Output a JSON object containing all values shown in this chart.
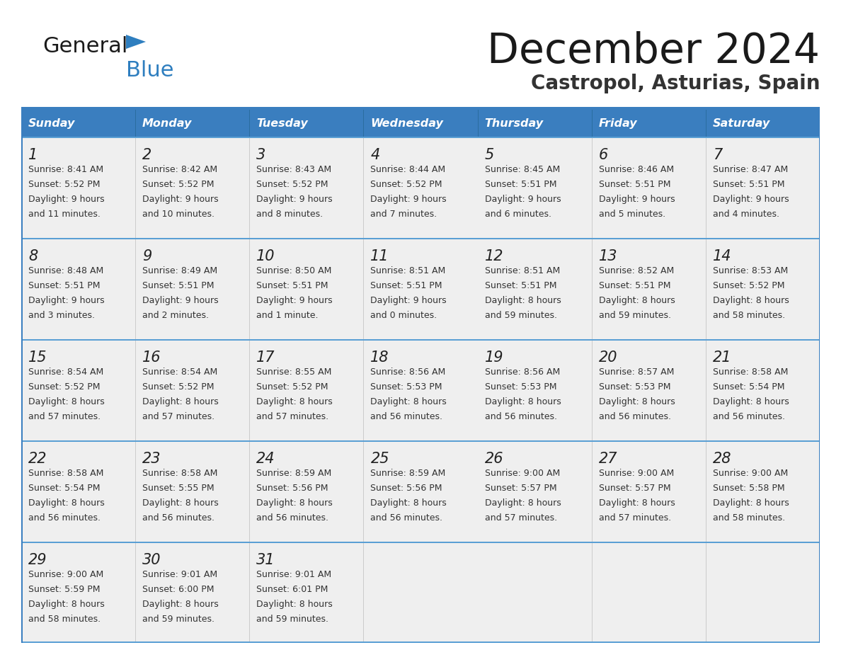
{
  "title": "December 2024",
  "subtitle": "Castropol, Asturias, Spain",
  "header_color": "#3a7ebf",
  "header_text_color": "#ffffff",
  "cell_bg_color": "#efefef",
  "border_color": "#3a7ebf",
  "row_separator_color": "#5a9fd4",
  "text_color": "#333333",
  "days_of_week": [
    "Sunday",
    "Monday",
    "Tuesday",
    "Wednesday",
    "Thursday",
    "Friday",
    "Saturday"
  ],
  "logo_general_color": "#1a1a1a",
  "logo_blue_color": "#2e7ebf",
  "logo_triangle_color": "#2e7ebf",
  "title_color": "#1a1a1a",
  "subtitle_color": "#333333",
  "weeks": [
    [
      {
        "day": 1,
        "sunrise": "8:41 AM",
        "sunset": "5:52 PM",
        "daylight_h": "9 hours",
        "daylight_m": "11 minutes"
      },
      {
        "day": 2,
        "sunrise": "8:42 AM",
        "sunset": "5:52 PM",
        "daylight_h": "9 hours",
        "daylight_m": "10 minutes"
      },
      {
        "day": 3,
        "sunrise": "8:43 AM",
        "sunset": "5:52 PM",
        "daylight_h": "9 hours",
        "daylight_m": "8 minutes"
      },
      {
        "day": 4,
        "sunrise": "8:44 AM",
        "sunset": "5:52 PM",
        "daylight_h": "9 hours",
        "daylight_m": "7 minutes"
      },
      {
        "day": 5,
        "sunrise": "8:45 AM",
        "sunset": "5:51 PM",
        "daylight_h": "9 hours",
        "daylight_m": "6 minutes"
      },
      {
        "day": 6,
        "sunrise": "8:46 AM",
        "sunset": "5:51 PM",
        "daylight_h": "9 hours",
        "daylight_m": "5 minutes"
      },
      {
        "day": 7,
        "sunrise": "8:47 AM",
        "sunset": "5:51 PM",
        "daylight_h": "9 hours",
        "daylight_m": "4 minutes"
      }
    ],
    [
      {
        "day": 8,
        "sunrise": "8:48 AM",
        "sunset": "5:51 PM",
        "daylight_h": "9 hours",
        "daylight_m": "3 minutes"
      },
      {
        "day": 9,
        "sunrise": "8:49 AM",
        "sunset": "5:51 PM",
        "daylight_h": "9 hours",
        "daylight_m": "2 minutes"
      },
      {
        "day": 10,
        "sunrise": "8:50 AM",
        "sunset": "5:51 PM",
        "daylight_h": "9 hours",
        "daylight_m": "1 minute"
      },
      {
        "day": 11,
        "sunrise": "8:51 AM",
        "sunset": "5:51 PM",
        "daylight_h": "9 hours",
        "daylight_m": "0 minutes"
      },
      {
        "day": 12,
        "sunrise": "8:51 AM",
        "sunset": "5:51 PM",
        "daylight_h": "8 hours",
        "daylight_m": "59 minutes"
      },
      {
        "day": 13,
        "sunrise": "8:52 AM",
        "sunset": "5:51 PM",
        "daylight_h": "8 hours",
        "daylight_m": "59 minutes"
      },
      {
        "day": 14,
        "sunrise": "8:53 AM",
        "sunset": "5:52 PM",
        "daylight_h": "8 hours",
        "daylight_m": "58 minutes"
      }
    ],
    [
      {
        "day": 15,
        "sunrise": "8:54 AM",
        "sunset": "5:52 PM",
        "daylight_h": "8 hours",
        "daylight_m": "57 minutes"
      },
      {
        "day": 16,
        "sunrise": "8:54 AM",
        "sunset": "5:52 PM",
        "daylight_h": "8 hours",
        "daylight_m": "57 minutes"
      },
      {
        "day": 17,
        "sunrise": "8:55 AM",
        "sunset": "5:52 PM",
        "daylight_h": "8 hours",
        "daylight_m": "57 minutes"
      },
      {
        "day": 18,
        "sunrise": "8:56 AM",
        "sunset": "5:53 PM",
        "daylight_h": "8 hours",
        "daylight_m": "56 minutes"
      },
      {
        "day": 19,
        "sunrise": "8:56 AM",
        "sunset": "5:53 PM",
        "daylight_h": "8 hours",
        "daylight_m": "56 minutes"
      },
      {
        "day": 20,
        "sunrise": "8:57 AM",
        "sunset": "5:53 PM",
        "daylight_h": "8 hours",
        "daylight_m": "56 minutes"
      },
      {
        "day": 21,
        "sunrise": "8:58 AM",
        "sunset": "5:54 PM",
        "daylight_h": "8 hours",
        "daylight_m": "56 minutes"
      }
    ],
    [
      {
        "day": 22,
        "sunrise": "8:58 AM",
        "sunset": "5:54 PM",
        "daylight_h": "8 hours",
        "daylight_m": "56 minutes"
      },
      {
        "day": 23,
        "sunrise": "8:58 AM",
        "sunset": "5:55 PM",
        "daylight_h": "8 hours",
        "daylight_m": "56 minutes"
      },
      {
        "day": 24,
        "sunrise": "8:59 AM",
        "sunset": "5:56 PM",
        "daylight_h": "8 hours",
        "daylight_m": "56 minutes"
      },
      {
        "day": 25,
        "sunrise": "8:59 AM",
        "sunset": "5:56 PM",
        "daylight_h": "8 hours",
        "daylight_m": "56 minutes"
      },
      {
        "day": 26,
        "sunrise": "9:00 AM",
        "sunset": "5:57 PM",
        "daylight_h": "8 hours",
        "daylight_m": "57 minutes"
      },
      {
        "day": 27,
        "sunrise": "9:00 AM",
        "sunset": "5:57 PM",
        "daylight_h": "8 hours",
        "daylight_m": "57 minutes"
      },
      {
        "day": 28,
        "sunrise": "9:00 AM",
        "sunset": "5:58 PM",
        "daylight_h": "8 hours",
        "daylight_m": "58 minutes"
      }
    ],
    [
      {
        "day": 29,
        "sunrise": "9:00 AM",
        "sunset": "5:59 PM",
        "daylight_h": "8 hours",
        "daylight_m": "58 minutes"
      },
      {
        "day": 30,
        "sunrise": "9:01 AM",
        "sunset": "6:00 PM",
        "daylight_h": "8 hours",
        "daylight_m": "59 minutes"
      },
      {
        "day": 31,
        "sunrise": "9:01 AM",
        "sunset": "6:01 PM",
        "daylight_h": "8 hours",
        "daylight_m": "59 minutes"
      },
      null,
      null,
      null,
      null
    ]
  ]
}
